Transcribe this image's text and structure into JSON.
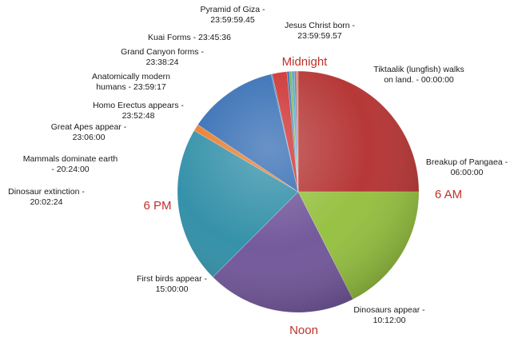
{
  "chart_data": {
    "type": "pie",
    "title": "",
    "legend": "none",
    "colors": {
      "tiktaalik": "#b3302f",
      "pangaea": "#93bf3c",
      "dinosaurs": "#6f5398",
      "birds": "#2d8da6",
      "extinction": "#2f85b7",
      "mammals": "#e87a26",
      "apes": "#2f69b2",
      "erectus": "#cc2d2b",
      "humans": "#3a6fb5",
      "grand_canyon": "#6cb040",
      "kuai": "#4da8c4",
      "giza": "#7f63aa",
      "jesus": "#e28a35"
    },
    "slices": [
      {
        "key": "tiktaalik",
        "start_time": "00:00:00",
        "label_lines": [
          "Tiktaalik (lungfish) walks",
          "on land. - 00:00:00"
        ]
      },
      {
        "key": "pangaea",
        "start_time": "06:00:00",
        "label_lines": [
          "Breakup of Pangaea -",
          "06:00:00"
        ]
      },
      {
        "key": "dinosaurs",
        "start_time": "10:12:00",
        "label_lines": [
          "Dinosaurs appear -",
          "10:12:00"
        ]
      },
      {
        "key": "birds",
        "start_time": "15:00:00",
        "label_lines": [
          "First birds appear -",
          "15:00:00"
        ]
      },
      {
        "key": "extinction",
        "start_time": "20:02:24",
        "label_lines": [
          "Dinosaur extinction -",
          "20:02:24"
        ]
      },
      {
        "key": "mammals",
        "start_time": "20:24:00",
        "label_lines": [
          "Mammals dominate earth",
          "- 20:24:00"
        ]
      },
      {
        "key": "apes",
        "start_time": "23:06:00",
        "label_lines": [
          "Great Apes appear -",
          "23:06:00"
        ]
      },
      {
        "key": "erectus",
        "start_time": "23:52:48",
        "label_lines": [
          "Homo Erectus appears -",
          "23:52:48"
        ]
      },
      {
        "key": "humans",
        "start_time": "23:59:17",
        "label_lines": [
          "Anatomically modern",
          "humans - 23:59:17"
        ]
      },
      {
        "key": "grand_canyon",
        "start_time": "23:38:24",
        "label_lines": [
          "Grand Canyon forms -",
          "23:38:24"
        ]
      },
      {
        "key": "kuai",
        "start_time": "23:45:36",
        "label_lines": [
          "Kuai Forms - 23:45:36"
        ]
      },
      {
        "key": "giza",
        "start_time": "23:59:59.45",
        "label_lines": [
          "Pyramid of Giza -",
          "23:59:59.45"
        ]
      },
      {
        "key": "jesus",
        "start_time": "23:59:59.57",
        "label_lines": [
          "Jesus Christ  born  -",
          "23:59:59.57"
        ]
      }
    ],
    "clock_labels": [
      {
        "text": "Midnight",
        "hour": 0
      },
      {
        "text": "6 AM",
        "hour": 6
      },
      {
        "text": "Noon",
        "hour": 12
      },
      {
        "text": "6 PM",
        "hour": 18
      }
    ]
  }
}
